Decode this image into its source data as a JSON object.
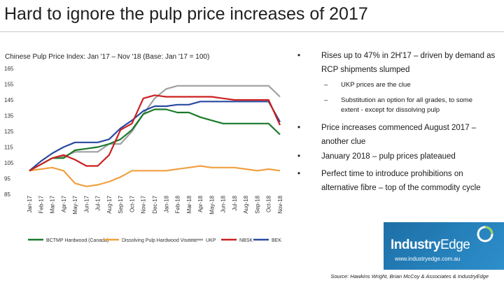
{
  "title": "Hard to ignore the pulp price increases of 2017",
  "bullets": [
    {
      "marker": "•",
      "text": "Rises up to 47% in 2H'17 – driven by demand as RCP shipments slumped"
    },
    {
      "marker": "–",
      "text": "UKP prices are the clue",
      "sub": true
    },
    {
      "marker": "–",
      "text": "Substitution an option for all grades, to some extent - except for dissolving pulp",
      "sub": true
    },
    {
      "marker": "•",
      "text": "Price increases commenced August 2017 – another clue"
    },
    {
      "marker": "•",
      "text": "January 2018 – pulp prices plateaued"
    },
    {
      "marker": "•",
      "text": "Perfect time to introduce prohibitions on alternative fibre – top of the commodity cycle"
    }
  ],
  "logo": {
    "brand_bold": "Industry",
    "brand_light": "Edge",
    "url": "www.industryedge.com.au"
  },
  "source": "Source: Hawkins Wright, Brian McCoy & Associates & IndustryEdge",
  "colors": {
    "bctmp": "#1a7a2a",
    "dissolving": "#f0a040",
    "ukp": "#a0a0a0",
    "nbsk": "#cc2020",
    "bek": "#2a4aa0"
  },
  "chart_data": {
    "type": "line",
    "title": "Chinese Pulp Price Index: Jan '17 – Nov '18 (Base: Jan '17 = 100)",
    "xlabel": "",
    "ylabel": "",
    "ylim": [
      85,
      165
    ],
    "yticks": [
      165,
      155,
      145,
      135,
      125,
      115,
      105,
      95,
      85
    ],
    "categories": [
      "Jan-17",
      "Feb-17",
      "Mar-17",
      "Apr-17",
      "May-17",
      "Jun-17",
      "Jul-17",
      "Aug-17",
      "Sep-17",
      "Oct-17",
      "Nov-17",
      "Dec-17",
      "Jan-18",
      "Feb-18",
      "Mar-18",
      "Apr-18",
      "May-18",
      "Jun-18",
      "Jul-18",
      "Aug-18",
      "Sep-18",
      "Oct-18",
      "Nov-18"
    ],
    "legend_position": "bottom",
    "series": [
      {
        "key": "bctmp",
        "name": "BCTMP Hardwood (Canada)",
        "values": [
          100,
          104,
          108,
          108,
          113,
          114,
          115,
          117,
          120,
          126,
          136,
          139,
          139,
          137,
          137,
          134,
          132,
          130,
          130,
          130,
          130,
          130,
          123
        ]
      },
      {
        "key": "dissolving",
        "name": "Dissolving Pulp Hardwood Viscose",
        "values": [
          100,
          101,
          102,
          100,
          92,
          90,
          91,
          93,
          96,
          100,
          100,
          100,
          100,
          101,
          102,
          103,
          102,
          102,
          102,
          101,
          100,
          101,
          100
        ]
      },
      {
        "key": "ukp",
        "name": "UKP",
        "values": [
          100,
          104,
          108,
          109,
          112,
          112,
          112,
          117,
          117,
          125,
          136,
          146,
          152,
          154,
          154,
          154,
          154,
          154,
          154,
          154,
          154,
          154,
          147
        ]
      },
      {
        "key": "nbsk",
        "name": "NBSK",
        "values": [
          100,
          104,
          108,
          110,
          107,
          103,
          103,
          110,
          126,
          130,
          146,
          148,
          147,
          147,
          147,
          147,
          147,
          146,
          145,
          145,
          145,
          145,
          129
        ]
      },
      {
        "key": "bek",
        "name": "BEK",
        "values": [
          100,
          106,
          111,
          115,
          118,
          118,
          118,
          120,
          127,
          132,
          138,
          141,
          141,
          142,
          142,
          144,
          144,
          144,
          144,
          144,
          144,
          144,
          131
        ]
      }
    ]
  }
}
